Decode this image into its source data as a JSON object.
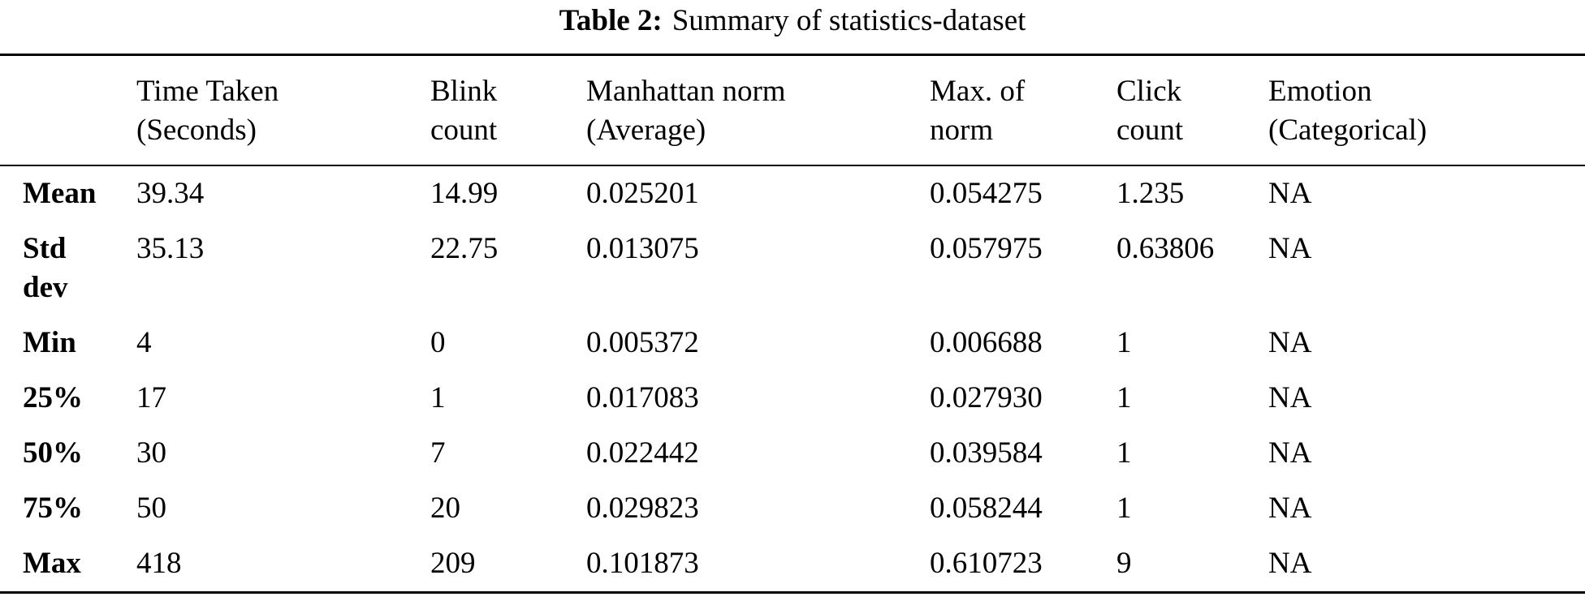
{
  "caption": {
    "label": "Table 2:",
    "text": "Summary of statistics-dataset"
  },
  "table": {
    "columns": [
      "",
      "Time Taken\n(Seconds)",
      "Blink\ncount",
      "Manhattan norm\n(Average)",
      "Max. of\nnorm",
      "Click\ncount",
      "Emotion\n(Categorical)"
    ],
    "rows": [
      {
        "label": "Mean",
        "cells": [
          "39.34",
          "14.99",
          "0.025201",
          "0.054275",
          "1.235",
          "NA"
        ]
      },
      {
        "label": "Std\ndev",
        "cells": [
          "35.13",
          "22.75",
          "0.013075",
          "0.057975",
          "0.63806",
          "NA"
        ]
      },
      {
        "label": "Min",
        "cells": [
          "4",
          "0",
          "0.005372",
          "0.006688",
          "1",
          "NA"
        ]
      },
      {
        "label": "25%",
        "cells": [
          "17",
          "1",
          "0.017083",
          "0.027930",
          "1",
          "NA"
        ]
      },
      {
        "label": "50%",
        "cells": [
          "30",
          "7",
          "0.022442",
          "0.039584",
          "1",
          "NA"
        ]
      },
      {
        "label": "75%",
        "cells": [
          "50",
          "20",
          "0.029823",
          "0.058244",
          "1",
          "NA"
        ]
      },
      {
        "label": "Max",
        "cells": [
          "418",
          "209",
          "0.101873",
          "0.610723",
          "9",
          "NA"
        ]
      }
    ]
  },
  "colors": {
    "text": "#000000",
    "background": "#ffffff",
    "rule": "#000000"
  }
}
